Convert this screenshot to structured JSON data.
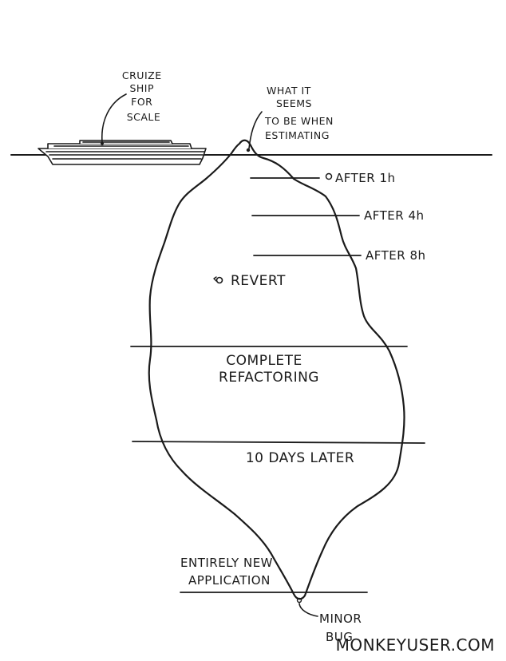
{
  "colors": {
    "ice_fill": "#d4eef8",
    "ink": "#1a1a1a",
    "background": "#ffffff"
  },
  "icons": {
    "ship": "cruise-ship-icon",
    "tip_marker": "small-circle-icon",
    "revert_marker": "revert-arrow-icon"
  },
  "labels": {
    "ship": [
      "CRUIZE",
      "SHIP",
      "FOR",
      "SCALE"
    ],
    "estimate": [
      "WHAT IT",
      "SEEMS",
      "TO BE WHEN",
      "ESTIMATING"
    ],
    "after_1h": "AFTER 1h",
    "after_4h": "AFTER 4h",
    "after_8h": "AFTER 8h",
    "revert": "REVERT",
    "complete_refactoring": [
      "COMPLETE",
      "REFACTORING"
    ],
    "ten_days_later": "10 DAYS LATER",
    "entirely_new_application": [
      "ENTIRELY NEW",
      "APPLICATION"
    ],
    "minor_bug": [
      "MINOR",
      "BUG"
    ],
    "signature": "MONKEYUSER.COM"
  }
}
